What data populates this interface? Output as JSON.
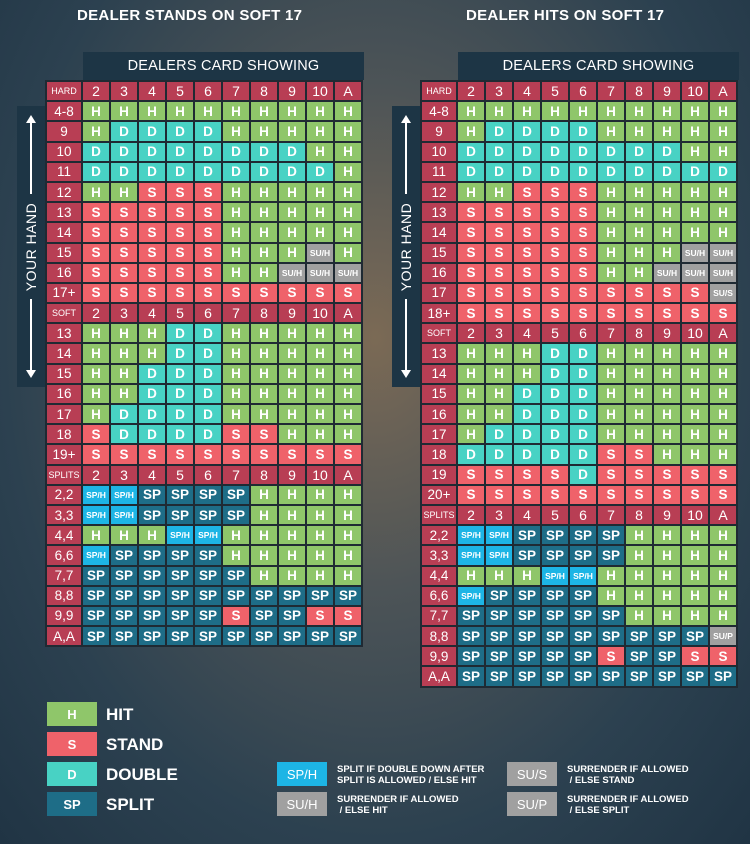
{
  "titles": {
    "left": "DEALER STANDS ON SOFT 17",
    "right": "DEALER HITS ON SOFT 17"
  },
  "dealer_header": "DEALERS CARD SHOWING",
  "your_hand": "YOUR HAND",
  "dealer_cards": [
    "2",
    "3",
    "4",
    "5",
    "6",
    "7",
    "8",
    "9",
    "10",
    "A"
  ],
  "section_labels": {
    "hard": "HARD",
    "soft": "SOFT",
    "splits": "SPLITS"
  },
  "left_table": {
    "hard": [
      {
        "hand": "4-8",
        "actions": [
          "H",
          "H",
          "H",
          "H",
          "H",
          "H",
          "H",
          "H",
          "H",
          "H"
        ]
      },
      {
        "hand": "9",
        "actions": [
          "H",
          "D",
          "D",
          "D",
          "D",
          "H",
          "H",
          "H",
          "H",
          "H"
        ]
      },
      {
        "hand": "10",
        "actions": [
          "D",
          "D",
          "D",
          "D",
          "D",
          "D",
          "D",
          "D",
          "H",
          "H"
        ]
      },
      {
        "hand": "11",
        "actions": [
          "D",
          "D",
          "D",
          "D",
          "D",
          "D",
          "D",
          "D",
          "D",
          "H"
        ]
      },
      {
        "hand": "12",
        "actions": [
          "H",
          "H",
          "S",
          "S",
          "S",
          "H",
          "H",
          "H",
          "H",
          "H"
        ]
      },
      {
        "hand": "13",
        "actions": [
          "S",
          "S",
          "S",
          "S",
          "S",
          "H",
          "H",
          "H",
          "H",
          "H"
        ]
      },
      {
        "hand": "14",
        "actions": [
          "S",
          "S",
          "S",
          "S",
          "S",
          "H",
          "H",
          "H",
          "H",
          "H"
        ]
      },
      {
        "hand": "15",
        "actions": [
          "S",
          "S",
          "S",
          "S",
          "S",
          "H",
          "H",
          "H",
          "SU/H",
          "H"
        ]
      },
      {
        "hand": "16",
        "actions": [
          "S",
          "S",
          "S",
          "S",
          "S",
          "H",
          "H",
          "SU/H",
          "SU/H",
          "SU/H"
        ]
      },
      {
        "hand": "17+",
        "actions": [
          "S",
          "S",
          "S",
          "S",
          "S",
          "S",
          "S",
          "S",
          "S",
          "S"
        ]
      }
    ],
    "soft": [
      {
        "hand": "13",
        "actions": [
          "H",
          "H",
          "H",
          "D",
          "D",
          "H",
          "H",
          "H",
          "H",
          "H"
        ]
      },
      {
        "hand": "14",
        "actions": [
          "H",
          "H",
          "H",
          "D",
          "D",
          "H",
          "H",
          "H",
          "H",
          "H"
        ]
      },
      {
        "hand": "15",
        "actions": [
          "H",
          "H",
          "D",
          "D",
          "D",
          "H",
          "H",
          "H",
          "H",
          "H"
        ]
      },
      {
        "hand": "16",
        "actions": [
          "H",
          "H",
          "D",
          "D",
          "D",
          "H",
          "H",
          "H",
          "H",
          "H"
        ]
      },
      {
        "hand": "17",
        "actions": [
          "H",
          "D",
          "D",
          "D",
          "D",
          "H",
          "H",
          "H",
          "H",
          "H"
        ]
      },
      {
        "hand": "18",
        "actions": [
          "S",
          "D",
          "D",
          "D",
          "D",
          "S",
          "S",
          "H",
          "H",
          "H"
        ]
      },
      {
        "hand": "19+",
        "actions": [
          "S",
          "S",
          "S",
          "S",
          "S",
          "S",
          "S",
          "S",
          "S",
          "S"
        ]
      }
    ],
    "splits": [
      {
        "hand": "2,2",
        "actions": [
          "SP/H",
          "SP/H",
          "SP",
          "SP",
          "SP",
          "SP",
          "H",
          "H",
          "H",
          "H"
        ]
      },
      {
        "hand": "3,3",
        "actions": [
          "SP/H",
          "SP/H",
          "SP",
          "SP",
          "SP",
          "SP",
          "H",
          "H",
          "H",
          "H"
        ]
      },
      {
        "hand": "4,4",
        "actions": [
          "H",
          "H",
          "H",
          "SP/H",
          "SP/H",
          "H",
          "H",
          "H",
          "H",
          "H"
        ]
      },
      {
        "hand": "6,6",
        "actions": [
          "SP/H",
          "SP",
          "SP",
          "SP",
          "SP",
          "H",
          "H",
          "H",
          "H",
          "H"
        ]
      },
      {
        "hand": "7,7",
        "actions": [
          "SP",
          "SP",
          "SP",
          "SP",
          "SP",
          "SP",
          "H",
          "H",
          "H",
          "H"
        ]
      },
      {
        "hand": "8,8",
        "actions": [
          "SP",
          "SP",
          "SP",
          "SP",
          "SP",
          "SP",
          "SP",
          "SP",
          "SP",
          "SP"
        ]
      },
      {
        "hand": "9,9",
        "actions": [
          "SP",
          "SP",
          "SP",
          "SP",
          "SP",
          "S",
          "SP",
          "SP",
          "S",
          "S"
        ]
      },
      {
        "hand": "A,A",
        "actions": [
          "SP",
          "SP",
          "SP",
          "SP",
          "SP",
          "SP",
          "SP",
          "SP",
          "SP",
          "SP"
        ]
      }
    ]
  },
  "right_table": {
    "hard": [
      {
        "hand": "4-8",
        "actions": [
          "H",
          "H",
          "H",
          "H",
          "H",
          "H",
          "H",
          "H",
          "H",
          "H"
        ]
      },
      {
        "hand": "9",
        "actions": [
          "H",
          "D",
          "D",
          "D",
          "D",
          "H",
          "H",
          "H",
          "H",
          "H"
        ]
      },
      {
        "hand": "10",
        "actions": [
          "D",
          "D",
          "D",
          "D",
          "D",
          "D",
          "D",
          "D",
          "H",
          "H"
        ]
      },
      {
        "hand": "11",
        "actions": [
          "D",
          "D",
          "D",
          "D",
          "D",
          "D",
          "D",
          "D",
          "D",
          "D"
        ]
      },
      {
        "hand": "12",
        "actions": [
          "H",
          "H",
          "S",
          "S",
          "S",
          "H",
          "H",
          "H",
          "H",
          "H"
        ]
      },
      {
        "hand": "13",
        "actions": [
          "S",
          "S",
          "S",
          "S",
          "S",
          "H",
          "H",
          "H",
          "H",
          "H"
        ]
      },
      {
        "hand": "14",
        "actions": [
          "S",
          "S",
          "S",
          "S",
          "S",
          "H",
          "H",
          "H",
          "H",
          "H"
        ]
      },
      {
        "hand": "15",
        "actions": [
          "S",
          "S",
          "S",
          "S",
          "S",
          "H",
          "H",
          "H",
          "SU/H",
          "SU/H"
        ]
      },
      {
        "hand": "16",
        "actions": [
          "S",
          "S",
          "S",
          "S",
          "S",
          "H",
          "H",
          "SU/H",
          "SU/H",
          "SU/H"
        ]
      },
      {
        "hand": "17",
        "actions": [
          "S",
          "S",
          "S",
          "S",
          "S",
          "S",
          "S",
          "S",
          "S",
          "SU/S"
        ]
      },
      {
        "hand": "18+",
        "actions": [
          "S",
          "S",
          "S",
          "S",
          "S",
          "S",
          "S",
          "S",
          "S",
          "S"
        ]
      }
    ],
    "soft": [
      {
        "hand": "13",
        "actions": [
          "H",
          "H",
          "H",
          "D",
          "D",
          "H",
          "H",
          "H",
          "H",
          "H"
        ]
      },
      {
        "hand": "14",
        "actions": [
          "H",
          "H",
          "H",
          "D",
          "D",
          "H",
          "H",
          "H",
          "H",
          "H"
        ]
      },
      {
        "hand": "15",
        "actions": [
          "H",
          "H",
          "D",
          "D",
          "D",
          "H",
          "H",
          "H",
          "H",
          "H"
        ]
      },
      {
        "hand": "16",
        "actions": [
          "H",
          "H",
          "D",
          "D",
          "D",
          "H",
          "H",
          "H",
          "H",
          "H"
        ]
      },
      {
        "hand": "17",
        "actions": [
          "H",
          "D",
          "D",
          "D",
          "D",
          "H",
          "H",
          "H",
          "H",
          "H"
        ]
      },
      {
        "hand": "18",
        "actions": [
          "D",
          "D",
          "D",
          "D",
          "D",
          "S",
          "S",
          "H",
          "H",
          "H"
        ]
      },
      {
        "hand": "19",
        "actions": [
          "S",
          "S",
          "S",
          "S",
          "D",
          "S",
          "S",
          "S",
          "S",
          "S"
        ]
      },
      {
        "hand": "20+",
        "actions": [
          "S",
          "S",
          "S",
          "S",
          "S",
          "S",
          "S",
          "S",
          "S",
          "S"
        ]
      }
    ],
    "splits": [
      {
        "hand": "2,2",
        "actions": [
          "SP/H",
          "SP/H",
          "SP",
          "SP",
          "SP",
          "SP",
          "H",
          "H",
          "H",
          "H"
        ]
      },
      {
        "hand": "3,3",
        "actions": [
          "SP/H",
          "SP/H",
          "SP",
          "SP",
          "SP",
          "SP",
          "H",
          "H",
          "H",
          "H"
        ]
      },
      {
        "hand": "4,4",
        "actions": [
          "H",
          "H",
          "H",
          "SP/H",
          "SP/H",
          "H",
          "H",
          "H",
          "H",
          "H"
        ]
      },
      {
        "hand": "6,6",
        "actions": [
          "SP/H",
          "SP",
          "SP",
          "SP",
          "SP",
          "H",
          "H",
          "H",
          "H",
          "H"
        ]
      },
      {
        "hand": "7,7",
        "actions": [
          "SP",
          "SP",
          "SP",
          "SP",
          "SP",
          "SP",
          "H",
          "H",
          "H",
          "H"
        ]
      },
      {
        "hand": "8,8",
        "actions": [
          "SP",
          "SP",
          "SP",
          "SP",
          "SP",
          "SP",
          "SP",
          "SP",
          "SP",
          "SU/P"
        ]
      },
      {
        "hand": "9,9",
        "actions": [
          "SP",
          "SP",
          "SP",
          "SP",
          "SP",
          "S",
          "SP",
          "SP",
          "S",
          "S"
        ]
      },
      {
        "hand": "A,A",
        "actions": [
          "SP",
          "SP",
          "SP",
          "SP",
          "SP",
          "SP",
          "SP",
          "SP",
          "SP",
          "SP"
        ]
      }
    ]
  },
  "legend": {
    "main": [
      {
        "code": "H",
        "label": "HIT"
      },
      {
        "code": "S",
        "label": "STAND"
      },
      {
        "code": "D",
        "label": "DOUBLE"
      },
      {
        "code": "SP",
        "label": "SPLIT"
      }
    ],
    "notes": [
      {
        "code": "SP/H",
        "line1": "SPLIT IF DOUBLE DOWN AFTER",
        "line2": "SPLIT IS ALLOWED / ELSE HIT"
      },
      {
        "code": "SU/H",
        "line1": "SURRENDER IF ALLOWED",
        "line2": " / ELSE HIT"
      },
      {
        "code": "SU/S",
        "line1": "SURRENDER IF ALLOWED",
        "line2": " / ELSE STAND"
      },
      {
        "code": "SU/P",
        "line1": "SURRENDER IF ALLOWED",
        "line2": " / ELSE SPLIT"
      }
    ]
  },
  "colors": {
    "hit": "#8fc66a",
    "stand": "#ef626a",
    "double": "#48d2c4",
    "split": "#1e6d87",
    "split_hit": "#1db5e5",
    "surrender": "#a0a0a0",
    "label": "#b83e54",
    "header": "#1d3545"
  }
}
